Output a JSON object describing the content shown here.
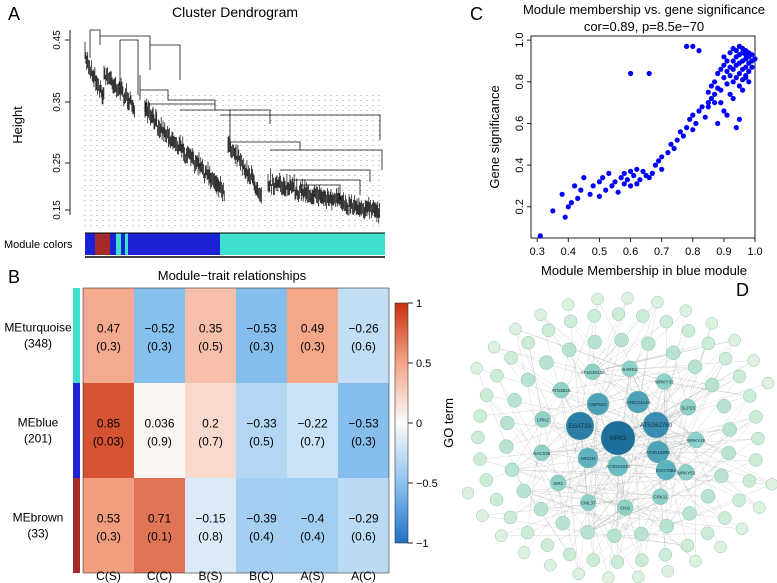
{
  "panels": {
    "A": {
      "letter": "A",
      "title": "Cluster Dendrogram",
      "ylabel": "Height",
      "yticks": [
        "0.45",
        "0.35",
        "0.25",
        "0.15"
      ],
      "module_colors_label": "Module colors",
      "colors": {
        "blue": "#1b21d6",
        "turquoise": "#40e0d0",
        "brown": "#a52a2a"
      }
    },
    "B": {
      "letter": "B",
      "title": "Module−trait relationships",
      "colorbar_label": "GO term",
      "colorbar_ticks": [
        "1",
        "0.5",
        "0",
        "−0.5",
        "−1"
      ],
      "rows": [
        {
          "name": "MEturquoise",
          "count": "(348)",
          "color": "#40e0d0"
        },
        {
          "name": "MEblue",
          "count": "(201)",
          "color": "#1b21d6"
        },
        {
          "name": "MEbrown",
          "count": "(33)",
          "color": "#a52a2a"
        }
      ],
      "columns": [
        "C(S)",
        "C(C)",
        "B(S)",
        "B(C)",
        "A(S)",
        "A(C)"
      ],
      "cells": [
        [
          {
            "r": "0.47",
            "p": "(0.3)"
          },
          {
            "r": "−0.52",
            "p": "(0.3)"
          },
          {
            "r": "0.35",
            "p": "(0.5)"
          },
          {
            "r": "−0.53",
            "p": "(0.3)"
          },
          {
            "r": "0.49",
            "p": "(0.3)"
          },
          {
            "r": "−0.26",
            "p": "(0.6)"
          }
        ],
        [
          {
            "r": "0.85",
            "p": "(0.03)"
          },
          {
            "r": "0.036",
            "p": "(0.9)"
          },
          {
            "r": "0.2",
            "p": "(0.7)"
          },
          {
            "r": "−0.33",
            "p": "(0.5)"
          },
          {
            "r": "−0.22",
            "p": "(0.7)"
          },
          {
            "r": "−0.53",
            "p": "(0.3)"
          }
        ],
        [
          {
            "r": "0.53",
            "p": "(0.3)"
          },
          {
            "r": "0.71",
            "p": "(0.1)"
          },
          {
            "r": "−0.15",
            "p": "(0.8)"
          },
          {
            "r": "−0.39",
            "p": "(0.4)"
          },
          {
            "r": "−0.4",
            "p": "(0.4)"
          },
          {
            "r": "−0.29",
            "p": "(0.6)"
          }
        ]
      ]
    },
    "C": {
      "letter": "C",
      "title": "Module membership vs. gene significance",
      "subtitle": "cor=0.89, p=8.5e−70",
      "xlabel": "Module Membership in blue module",
      "ylabel": "Gene significance",
      "xticks": [
        "0.3",
        "0.4",
        "0.5",
        "0.6",
        "0.7",
        "0.8",
        "0.9",
        "1.0"
      ],
      "yticks": [
        "0.2",
        "0.4",
        "0.6",
        "0.8",
        "1.0"
      ]
    },
    "D": {
      "letter": "D",
      "hub_labels": [
        "MPK3",
        "EGAT3A",
        "AT5G62760",
        "CBP60G",
        "AT5G24140",
        "AT3G18880",
        "ARCH1",
        "EXO70B2",
        "AT3G01830",
        "SARD1",
        "WRKY33",
        "SLP23",
        "WRKY40",
        "WRKY53",
        "CRK11",
        "CNI1",
        "CML37",
        "SIR1",
        "NAC036",
        "CRK2",
        "ATS3B16",
        "AT1G30130"
      ]
    }
  },
  "chart_data": [
    {
      "type": "heatmap",
      "title": "Module−trait relationships",
      "rows": [
        "MEturquoise",
        "MEblue",
        "MEbrown"
      ],
      "columns": [
        "C(S)",
        "C(C)",
        "B(S)",
        "B(C)",
        "A(S)",
        "A(C)"
      ],
      "values": [
        [
          0.47,
          -0.52,
          0.35,
          -0.53,
          0.49,
          -0.26
        ],
        [
          0.85,
          0.036,
          0.2,
          -0.33,
          -0.22,
          -0.53
        ],
        [
          0.53,
          0.71,
          -0.15,
          -0.39,
          -0.4,
          -0.29
        ]
      ],
      "pvalues": [
        [
          0.3,
          0.3,
          0.5,
          0.3,
          0.3,
          0.6
        ],
        [
          0.03,
          0.9,
          0.7,
          0.5,
          0.7,
          0.3
        ],
        [
          0.3,
          0.1,
          0.8,
          0.4,
          0.4,
          0.6
        ]
      ],
      "colorbar_range": [
        -1,
        1
      ]
    },
    {
      "type": "scatter",
      "title": "Module membership vs. gene significance",
      "xlabel": "Module Membership in blue module",
      "ylabel": "Gene significance",
      "xlim": [
        0.28,
        1.0
      ],
      "ylim": [
        0.05,
        1.02
      ],
      "color": "#0000ff",
      "series": [
        {
          "x": [
            0.31,
            0.35,
            0.38,
            0.39,
            0.4,
            0.41,
            0.42,
            0.43,
            0.44,
            0.45,
            0.47,
            0.48,
            0.5,
            0.5,
            0.51,
            0.52,
            0.53,
            0.54,
            0.55,
            0.56,
            0.57,
            0.58,
            0.58,
            0.59,
            0.6,
            0.6,
            0.61,
            0.62,
            0.62,
            0.63,
            0.64,
            0.65,
            0.66,
            0.67,
            0.68,
            0.69,
            0.7,
            0.7,
            0.72,
            0.73,
            0.74,
            0.75,
            0.76,
            0.77,
            0.78,
            0.79,
            0.8,
            0.8,
            0.81,
            0.82,
            0.83,
            0.84,
            0.85,
            0.85,
            0.86,
            0.86,
            0.87,
            0.87,
            0.88,
            0.88,
            0.89,
            0.89,
            0.9,
            0.9,
            0.9,
            0.91,
            0.91,
            0.91,
            0.92,
            0.92,
            0.92,
            0.93,
            0.93,
            0.93,
            0.93,
            0.94,
            0.94,
            0.94,
            0.94,
            0.95,
            0.95,
            0.95,
            0.95,
            0.95,
            0.96,
            0.96,
            0.96,
            0.96,
            0.96,
            0.97,
            0.97,
            0.97,
            0.97,
            0.97,
            0.98,
            0.98,
            0.98,
            0.98,
            0.99,
            0.99,
            0.99,
            1.0,
            0.78,
            0.8,
            0.82,
            0.66,
            0.6,
            0.87,
            0.9,
            0.93,
            0.95,
            0.88,
            0.85,
            0.92,
            0.96,
            0.98,
            0.94,
            0.89,
            0.91,
            0.97
          ],
          "y": [
            0.06,
            0.18,
            0.26,
            0.15,
            0.2,
            0.22,
            0.3,
            0.24,
            0.28,
            0.34,
            0.26,
            0.3,
            0.32,
            0.25,
            0.34,
            0.28,
            0.36,
            0.3,
            0.32,
            0.27,
            0.34,
            0.31,
            0.36,
            0.33,
            0.3,
            0.37,
            0.35,
            0.31,
            0.38,
            0.33,
            0.37,
            0.35,
            0.34,
            0.36,
            0.4,
            0.42,
            0.38,
            0.44,
            0.46,
            0.5,
            0.48,
            0.52,
            0.56,
            0.54,
            0.58,
            0.62,
            0.57,
            0.64,
            0.6,
            0.66,
            0.68,
            0.63,
            0.7,
            0.75,
            0.72,
            0.78,
            0.74,
            0.8,
            0.77,
            0.84,
            0.76,
            0.86,
            0.82,
            0.88,
            0.92,
            0.79,
            0.85,
            0.9,
            0.83,
            0.87,
            0.94,
            0.8,
            0.86,
            0.9,
            0.96,
            0.82,
            0.88,
            0.92,
            0.95,
            0.78,
            0.84,
            0.89,
            0.93,
            0.97,
            0.81,
            0.86,
            0.9,
            0.94,
            0.96,
            0.83,
            0.87,
            0.91,
            0.93,
            0.95,
            0.85,
            0.89,
            0.92,
            0.94,
            0.87,
            0.9,
            0.93,
            0.91,
            0.97,
            0.97,
            0.95,
            0.84,
            0.84,
            0.7,
            0.66,
            0.72,
            0.62,
            0.6,
            0.68,
            0.74,
            0.76,
            0.8,
            0.58,
            0.7,
            0.64,
            0.82
          ]
        }
      ]
    }
  ]
}
